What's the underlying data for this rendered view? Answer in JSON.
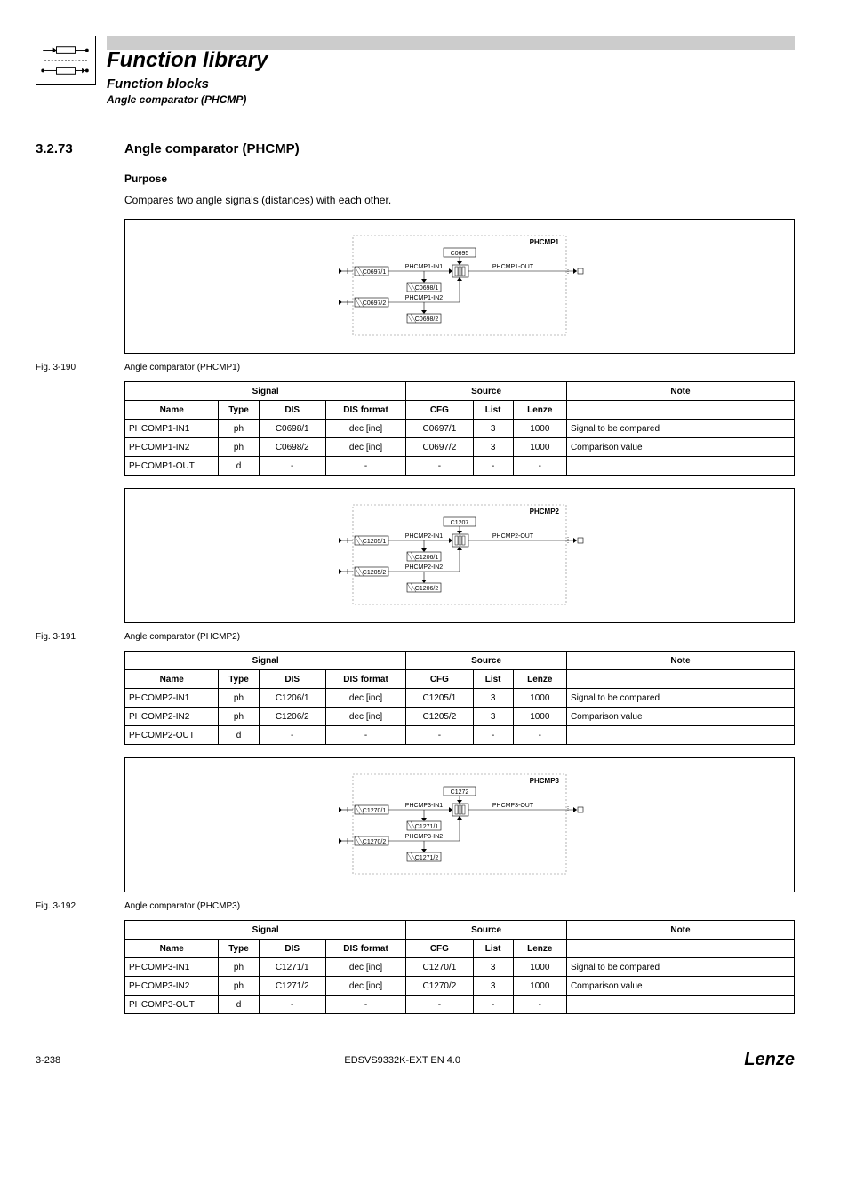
{
  "header": {
    "title": "Function library",
    "subtitle": "Function blocks",
    "subsubtitle": "Angle comparator (PHCMP)"
  },
  "section": {
    "number": "3.2.73",
    "title": "Angle comparator (PHCMP)",
    "purpose_label": "Purpose",
    "purpose_text": "Compares two angle signals (distances) with each other."
  },
  "blocks": [
    {
      "diagram": {
        "block_label": "PHCMP1",
        "top_box": "C0695",
        "in1_label": "PHCMP1-IN1",
        "in1_inbox": "C0697/1",
        "in1_midbox": "C0698/1",
        "in2_label": "PHCMP1-IN2",
        "in2_inbox": "C0697/2",
        "in2_midbox": "C0698/2",
        "out_label": "PHCMP1-OUT"
      },
      "fignum": "Fig. 3-190",
      "figtext": "Angle comparator (PHCMP1)",
      "rows": [
        {
          "name": "PHCOMP1-IN1",
          "type": "ph",
          "dis": "C0698/1",
          "disf": "dec [inc]",
          "cfg": "C0697/1",
          "list": "3",
          "lenze": "1000",
          "note": "Signal to be compared"
        },
        {
          "name": "PHCOMP1-IN2",
          "type": "ph",
          "dis": "C0698/2",
          "disf": "dec [inc]",
          "cfg": "C0697/2",
          "list": "3",
          "lenze": "1000",
          "note": "Comparison value"
        },
        {
          "name": "PHCOMP1-OUT",
          "type": "d",
          "dis": "-",
          "disf": "-",
          "cfg": "-",
          "list": "-",
          "lenze": "-",
          "note": ""
        }
      ]
    },
    {
      "diagram": {
        "block_label": "PHCMP2",
        "top_box": "C1207",
        "in1_label": "PHCMP2-IN1",
        "in1_inbox": "C1205/1",
        "in1_midbox": "C1206/1",
        "in2_label": "PHCMP2-IN2",
        "in2_inbox": "C1205/2",
        "in2_midbox": "C1206/2",
        "out_label": "PHCMP2-OUT"
      },
      "fignum": "Fig. 3-191",
      "figtext": "Angle comparator (PHCMP2)",
      "rows": [
        {
          "name": "PHCOMP2-IN1",
          "type": "ph",
          "dis": "C1206/1",
          "disf": "dec [inc]",
          "cfg": "C1205/1",
          "list": "3",
          "lenze": "1000",
          "note": "Signal to be compared"
        },
        {
          "name": "PHCOMP2-IN2",
          "type": "ph",
          "dis": "C1206/2",
          "disf": "dec [inc]",
          "cfg": "C1205/2",
          "list": "3",
          "lenze": "1000",
          "note": "Comparison value"
        },
        {
          "name": "PHCOMP2-OUT",
          "type": "d",
          "dis": "-",
          "disf": "-",
          "cfg": "-",
          "list": "-",
          "lenze": "-",
          "note": ""
        }
      ]
    },
    {
      "diagram": {
        "block_label": "PHCMP3",
        "top_box": "C1272",
        "in1_label": "PHCMP3-IN1",
        "in1_inbox": "C1270/1",
        "in1_midbox": "C1271/1",
        "in2_label": "PHCMP3-IN2",
        "in2_inbox": "C1270/2",
        "in2_midbox": "C1271/2",
        "out_label": "PHCMP3-OUT"
      },
      "fignum": "Fig. 3-192",
      "figtext": "Angle comparator (PHCMP3)",
      "rows": [
        {
          "name": "PHCOMP3-IN1",
          "type": "ph",
          "dis": "C1271/1",
          "disf": "dec [inc]",
          "cfg": "C1270/1",
          "list": "3",
          "lenze": "1000",
          "note": "Signal to be compared"
        },
        {
          "name": "PHCOMP3-IN2",
          "type": "ph",
          "dis": "C1271/2",
          "disf": "dec [inc]",
          "cfg": "C1270/2",
          "list": "3",
          "lenze": "1000",
          "note": "Comparison value"
        },
        {
          "name": "PHCOMP3-OUT",
          "type": "d",
          "dis": "-",
          "disf": "-",
          "cfg": "-",
          "list": "-",
          "lenze": "-",
          "note": ""
        }
      ]
    }
  ],
  "table_headers": {
    "signal": "Signal",
    "source": "Source",
    "note": "Note",
    "name": "Name",
    "type": "Type",
    "dis": "DIS",
    "disf": "DIS format",
    "cfg": "CFG",
    "list": "List",
    "lenze": "Lenze"
  },
  "footer": {
    "page": "3-238",
    "docid": "EDSVS9332K-EXT EN 4.0",
    "logo": "Lenze"
  },
  "style": {
    "font_family": "Arial, Helvetica, sans-serif",
    "table_border_color": "#000000",
    "header_bar_color": "#cccccc",
    "diagram_colors": {
      "dashed_border": "#808080",
      "solid_box": "#000000",
      "hatched_box_stroke": "#000000"
    }
  }
}
